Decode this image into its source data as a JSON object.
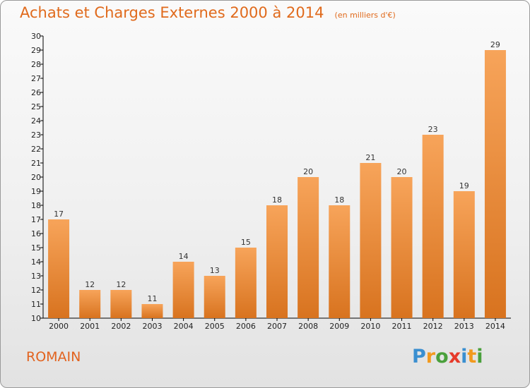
{
  "header": {
    "title": "Achats et Charges Externes 2000 à 2014",
    "subtitle": "(en milliers d'€)"
  },
  "footer": {
    "commune": "ROMAIN",
    "logo_letters": [
      "P",
      "r",
      "o",
      "x",
      "i",
      "t",
      "i"
    ],
    "logo_colors": [
      "#3a8fd0",
      "#f29a1e",
      "#4aa03c",
      "#e63a2a",
      "#3a8fd0",
      "#f29a1e",
      "#4aa03c"
    ]
  },
  "chart_data": {
    "type": "bar",
    "title": "Achats et Charges Externes 2000 à 2014",
    "subtitle": "(en milliers d'€)",
    "xlabel": "",
    "ylabel": "",
    "categories": [
      "2000",
      "2001",
      "2002",
      "2003",
      "2004",
      "2005",
      "2006",
      "2007",
      "2008",
      "2009",
      "2010",
      "2011",
      "2012",
      "2013",
      "2014"
    ],
    "values": [
      17,
      12,
      12,
      11,
      14,
      13,
      15,
      18,
      20,
      18,
      21,
      20,
      23,
      19,
      29
    ],
    "ylim": [
      10,
      30
    ],
    "yticks": [
      10,
      11,
      12,
      13,
      14,
      15,
      16,
      17,
      18,
      19,
      20,
      21,
      22,
      23,
      24,
      25,
      26,
      27,
      28,
      29,
      30
    ],
    "grid": false,
    "data_labels": true,
    "bar_color_light": "#f7a45a",
    "bar_color_dark": "#d8731f",
    "axis_color": "#000000"
  }
}
